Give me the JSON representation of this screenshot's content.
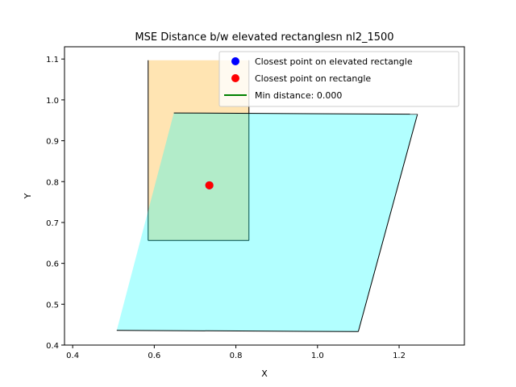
{
  "chart_data": {
    "type": "polygon-plot",
    "title": "MSE Distance b/w elevated rectanglesn nl2_1500",
    "xlabel": "X",
    "ylabel": "Y",
    "xlim": [
      0.38,
      1.36
    ],
    "ylim": [
      0.4,
      1.13
    ],
    "xticks": [
      0.4,
      0.6,
      0.8,
      1.0,
      1.2
    ],
    "xtick_labels": [
      "0.4",
      "0.6",
      "0.8",
      "1.0",
      "1.2"
    ],
    "yticks": [
      0.4,
      0.5,
      0.6,
      0.7,
      0.8,
      0.9,
      1.0,
      1.1
    ],
    "ytick_labels": [
      "0.4",
      "0.5",
      "0.6",
      "0.7",
      "0.8",
      "0.9",
      "1.0",
      "1.1"
    ],
    "grid": false,
    "legend_position": "top-right",
    "polygons": [
      {
        "id": "rectangle",
        "fill": "#ffa500",
        "fill_opacity": 0.3,
        "points": [
          [
            0.585,
            1.097
          ],
          [
            0.832,
            1.097
          ],
          [
            0.832,
            0.656
          ],
          [
            0.585,
            0.656
          ]
        ],
        "edges": [
          [
            1,
            2
          ],
          [
            2,
            3
          ],
          [
            3,
            0
          ]
        ]
      },
      {
        "id": "elevated-rectangle",
        "fill": "#00ffff",
        "fill_opacity": 0.3,
        "points": [
          [
            0.648,
            0.968
          ],
          [
            1.245,
            0.965
          ],
          [
            1.1,
            0.433
          ],
          [
            0.508,
            0.436
          ]
        ],
        "edges": [
          [
            0,
            1
          ],
          [
            1,
            2
          ],
          [
            2,
            3
          ]
        ]
      }
    ],
    "points": [
      {
        "name": "Closest point on elevated rectangle",
        "x": 0.735,
        "y": 0.791,
        "color": "#0000ff"
      },
      {
        "name": "Closest point on rectangle",
        "x": 0.735,
        "y": 0.791,
        "color": "#ff0000"
      }
    ],
    "legend": [
      {
        "label": "Closest point on elevated rectangle",
        "marker": "circle",
        "color": "#0000ff"
      },
      {
        "label": "Closest point on rectangle",
        "marker": "circle",
        "color": "#ff0000"
      },
      {
        "label": "Min distance: 0.000",
        "marker": "line",
        "color": "#008000"
      }
    ]
  }
}
